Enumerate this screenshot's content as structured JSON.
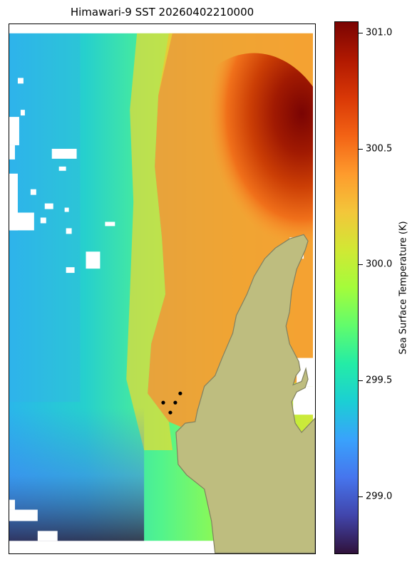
{
  "chart_data": {
    "type": "heatmap",
    "title": "Himawari-9 SST 20260402210000",
    "colorbar": {
      "label": "Sea Surface Temperature (K)",
      "colormap": "turbo",
      "range": [
        298.75,
        301.05
      ],
      "ticks": [
        "299.0",
        "299.5",
        "300.0",
        "300.5",
        "301.0"
      ],
      "tick_values": [
        299.0,
        299.5,
        300.0,
        300.5,
        301.0
      ]
    },
    "field_summary": {
      "west_coast_min": 298.8,
      "west_open_ocean": 299.4,
      "central_band": 299.9,
      "warm_tongue": 300.3,
      "northeast_max": 301.0
    },
    "land_color": "#bebd7f",
    "land_edge_color": "#808060",
    "missing_color": "#ffffff",
    "grid": false,
    "markers": {
      "count": 4,
      "color": "#000000"
    }
  }
}
